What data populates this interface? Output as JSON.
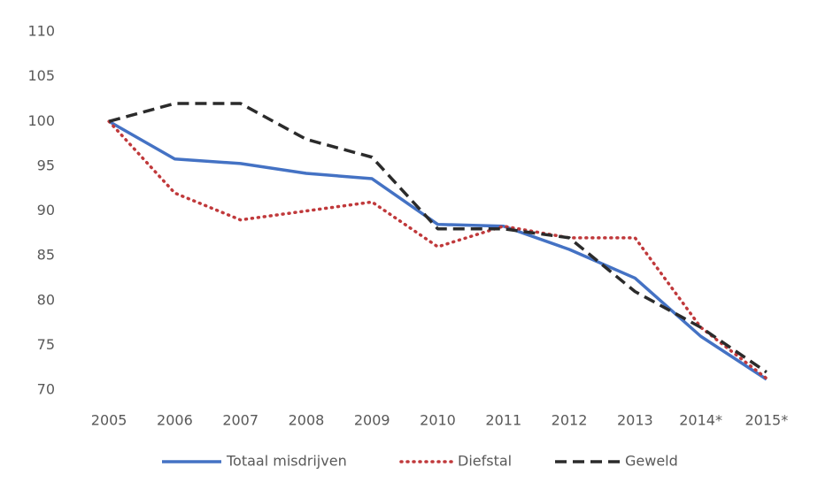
{
  "chart_data": {
    "type": "line",
    "categories": [
      "2005",
      "2006",
      "2007",
      "2008",
      "2009",
      "2010",
      "2011",
      "2012",
      "2013",
      "2014*",
      "2015*"
    ],
    "series": [
      {
        "name": "Totaal misdrijven",
        "color": "#4472c4",
        "values": [
          100,
          95.8,
          95.3,
          94.2,
          93.6,
          88.5,
          88.3,
          85.7,
          82.5,
          76,
          71.2
        ]
      },
      {
        "name": "Diefstal",
        "color": "#c0393b",
        "values": [
          100,
          92,
          89,
          90,
          91,
          86,
          88.3,
          87,
          87,
          77,
          71.3
        ]
      },
      {
        "name": "Geweld",
        "color": "#2b2b2b",
        "values": [
          100,
          102,
          102,
          98,
          96,
          88,
          88,
          87,
          81,
          77,
          72
        ]
      }
    ],
    "ylim": [
      70,
      110
    ],
    "yticks": [
      70,
      75,
      80,
      85,
      90,
      95,
      100,
      105,
      110
    ],
    "grid": false,
    "legend": "bottom"
  }
}
